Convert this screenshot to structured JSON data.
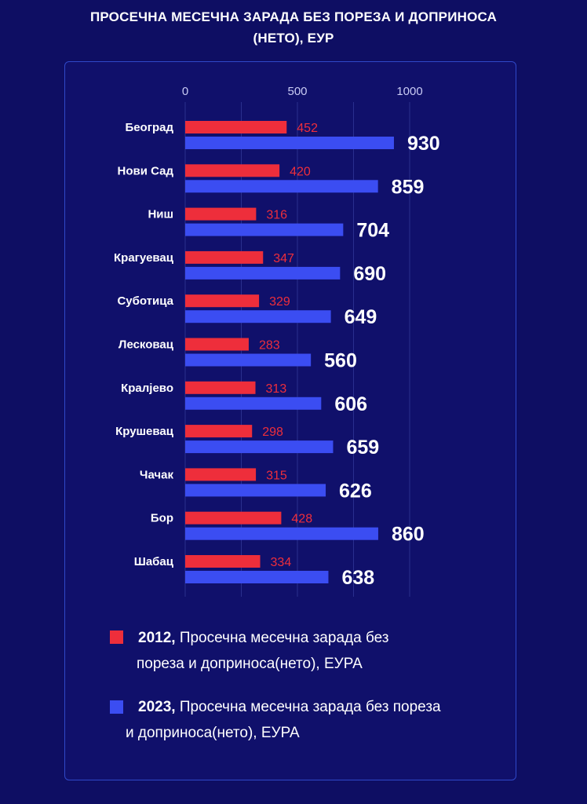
{
  "title": {
    "line1": "ПРОСЕЧНА МЕСЕЧНА ЗАРАДА БЕЗ ПОРЕЗА И ДОПРИНОСА",
    "line2": "(НЕТО), ЕУР"
  },
  "legend": [
    {
      "year": "2012,",
      "text": "Просечна месечна зарада без",
      "text2": "пореза и доприноса(нето), ЕУРА",
      "color": "#ee2e3b"
    },
    {
      "year": "2023,",
      "text": "Просечна месечна зарада без пореза",
      "text2": "и доприноса(нето), ЕУРА",
      "color": "#3b4df2"
    }
  ],
  "chart_data": {
    "type": "bar",
    "orientation": "horizontal",
    "categories": [
      "Београд",
      "Нови Сад",
      "Ниш",
      "Крагуевац",
      "Суботица",
      "Лесковац",
      "Кралјево",
      "Крушевац",
      "Чачак",
      "Бор",
      "Шабац"
    ],
    "series": [
      {
        "name": "2012",
        "values": [
          452,
          420,
          316,
          347,
          329,
          283,
          313,
          298,
          315,
          428,
          334
        ],
        "color": "#ee2e3b"
      },
      {
        "name": "2023",
        "values": [
          930,
          859,
          704,
          690,
          649,
          560,
          606,
          659,
          626,
          860,
          638
        ],
        "color": "#3b4df2"
      }
    ],
    "x_ticks": [
      "0",
      "500",
      "1000"
    ],
    "xlim": [
      0,
      1000
    ],
    "grid": true,
    "legend_position": "bottom"
  }
}
